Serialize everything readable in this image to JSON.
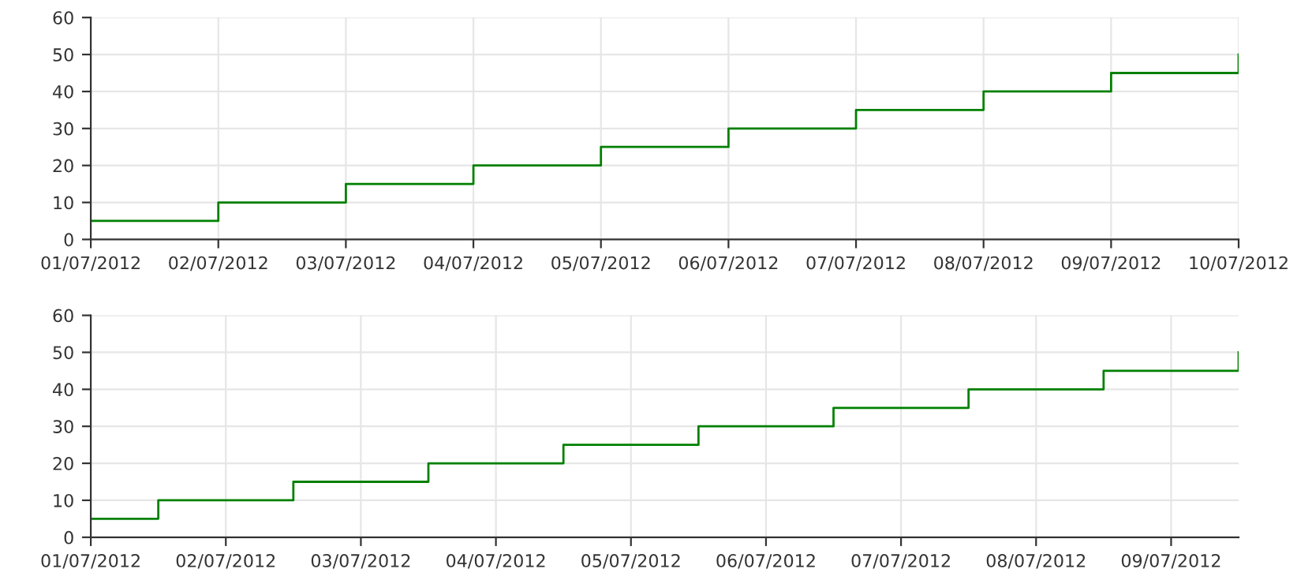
{
  "chart_data": [
    {
      "type": "step",
      "x": [
        "2012-07-01",
        "2012-07-02",
        "2012-07-03",
        "2012-07-04",
        "2012-07-05",
        "2012-07-06",
        "2012-07-07",
        "2012-07-08",
        "2012-07-09",
        "2012-07-10"
      ],
      "series": [
        {
          "color": "#008000",
          "values": [
            5,
            10,
            15,
            20,
            25,
            30,
            35,
            40,
            45,
            50
          ]
        }
      ],
      "xlim": [
        "2012-07-01",
        "2012-07-10"
      ],
      "xticks": [
        {
          "value": "2012-07-01",
          "label": "01/07/2012"
        },
        {
          "value": "2012-07-02",
          "label": "02/07/2012"
        },
        {
          "value": "2012-07-03",
          "label": "03/07/2012"
        },
        {
          "value": "2012-07-04",
          "label": "04/07/2012"
        },
        {
          "value": "2012-07-05",
          "label": "05/07/2012"
        },
        {
          "value": "2012-07-06",
          "label": "06/07/2012"
        },
        {
          "value": "2012-07-07",
          "label": "07/07/2012"
        },
        {
          "value": "2012-07-08",
          "label": "08/07/2012"
        },
        {
          "value": "2012-07-09",
          "label": "09/07/2012"
        },
        {
          "value": "2012-07-10",
          "label": "10/07/2012"
        }
      ],
      "ylim": [
        0,
        60
      ],
      "yticks": [
        0,
        10,
        20,
        30,
        40,
        50,
        60
      ],
      "grid": true,
      "legend": false
    },
    {
      "type": "step",
      "x": [
        "2012-07-01",
        "2012-07-01T12:00",
        "2012-07-02T12:00",
        "2012-07-03T12:00",
        "2012-07-04T12:00",
        "2012-07-05T12:00",
        "2012-07-06T12:00",
        "2012-07-07T12:00",
        "2012-07-08T12:00",
        "2012-07-09T12:00"
      ],
      "series": [
        {
          "color": "#008000",
          "values": [
            5,
            10,
            15,
            20,
            25,
            30,
            35,
            40,
            45,
            50
          ]
        }
      ],
      "xlim": [
        "2012-07-01",
        "2012-07-09T12:00"
      ],
      "xticks": [
        {
          "value": "2012-07-01",
          "label": "01/07/2012"
        },
        {
          "value": "2012-07-02",
          "label": "02/07/2012"
        },
        {
          "value": "2012-07-03",
          "label": "03/07/2012"
        },
        {
          "value": "2012-07-04",
          "label": "04/07/2012"
        },
        {
          "value": "2012-07-05",
          "label": "05/07/2012"
        },
        {
          "value": "2012-07-06",
          "label": "06/07/2012"
        },
        {
          "value": "2012-07-07",
          "label": "07/07/2012"
        },
        {
          "value": "2012-07-08",
          "label": "08/07/2012"
        },
        {
          "value": "2012-07-09",
          "label": "09/07/2012"
        }
      ],
      "ylim": [
        0,
        60
      ],
      "yticks": [
        0,
        10,
        20,
        30,
        40,
        50,
        60
      ],
      "grid": true,
      "legend": false
    }
  ]
}
